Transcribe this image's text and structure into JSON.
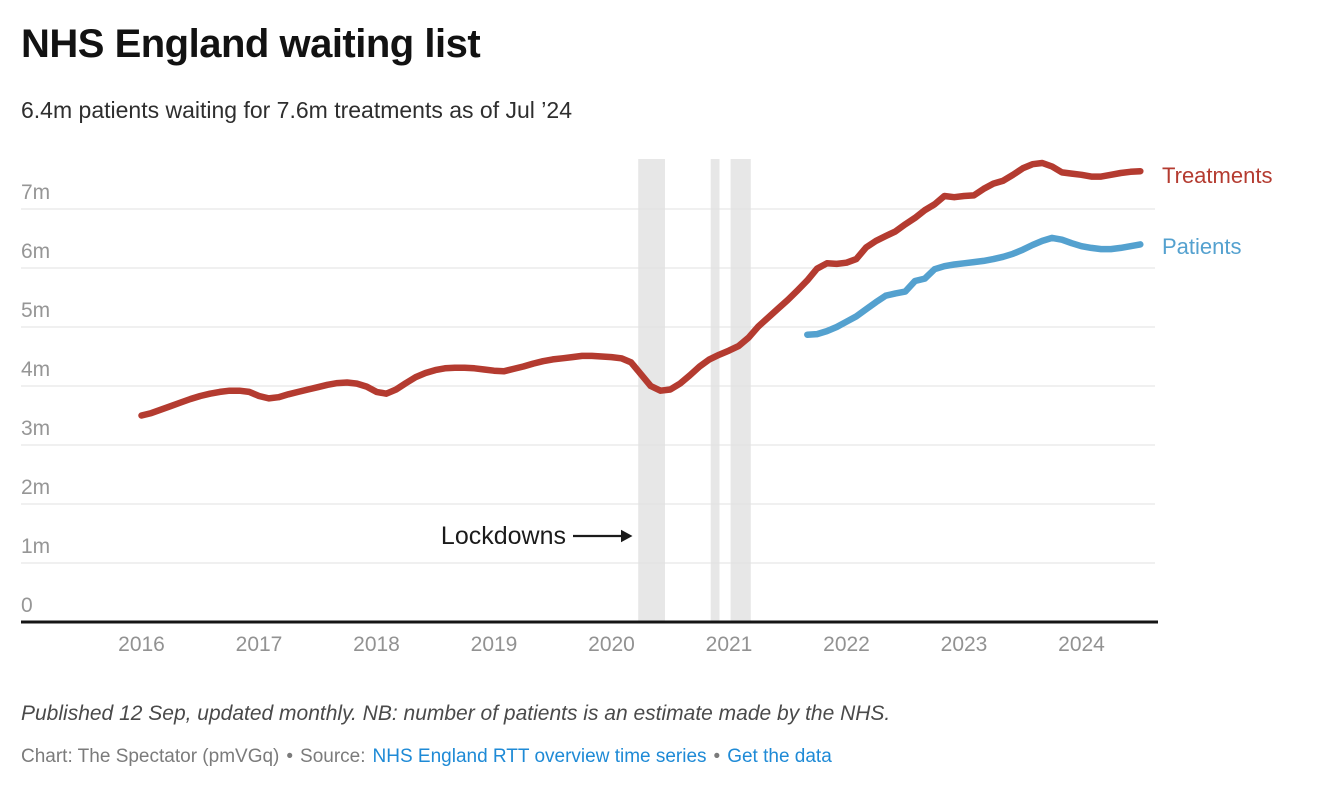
{
  "header": {
    "title": "NHS England waiting list",
    "subtitle": "6.4m patients waiting for 7.6m treatments as of Jul ’24"
  },
  "annotation": {
    "lockdowns_label": "Lockdowns"
  },
  "footer": {
    "note": "Published 12 Sep, updated monthly. NB: number of patients is an estimate made by the NHS.",
    "credit": "Chart: The Spectator (pmVGq)",
    "separator": "•",
    "source_label": "Source:",
    "source_link": "NHS England RTT overview time series",
    "data_link": "Get the data",
    "link_color": "#1e8ad6"
  },
  "chart_data": {
    "type": "line",
    "title": "NHS England waiting list",
    "subtitle": "6.4m patients waiting for 7.6m treatments as of Jul ’24",
    "unit": "millions of people / pathways",
    "x_ticks": [
      2016,
      2017,
      2018,
      2019,
      2020,
      2021,
      2022,
      2023,
      2024
    ],
    "y_ticks": [
      {
        "value": 0,
        "label": "0"
      },
      {
        "value": 1,
        "label": "1m"
      },
      {
        "value": 2,
        "label": "2m"
      },
      {
        "value": 3,
        "label": "3m"
      },
      {
        "value": 4,
        "label": "4m"
      },
      {
        "value": 5,
        "label": "5m"
      },
      {
        "value": 6,
        "label": "6m"
      },
      {
        "value": 7,
        "label": "7m"
      }
    ],
    "ylim": [
      0,
      7.85
    ],
    "grid": true,
    "legend_position": "right-of-line-ends",
    "series": [
      {
        "name": "Treatments",
        "color": "#b43b30",
        "start": "2016-01",
        "interval": "monthly",
        "values": [
          3.5,
          3.54,
          3.6,
          3.66,
          3.72,
          3.78,
          3.83,
          3.87,
          3.9,
          3.92,
          3.92,
          3.9,
          3.83,
          3.79,
          3.81,
          3.86,
          3.9,
          3.94,
          3.98,
          4.02,
          4.05,
          4.06,
          4.04,
          3.99,
          3.9,
          3.87,
          3.94,
          4.05,
          4.15,
          4.22,
          4.27,
          4.3,
          4.31,
          4.31,
          4.3,
          4.28,
          4.26,
          4.25,
          4.29,
          4.33,
          4.38,
          4.42,
          4.45,
          4.47,
          4.49,
          4.51,
          4.51,
          4.5,
          4.49,
          4.47,
          4.4,
          4.2,
          4.0,
          3.92,
          3.94,
          4.04,
          4.18,
          4.33,
          4.45,
          4.53,
          4.6,
          4.68,
          4.82,
          5.01,
          5.16,
          5.31,
          5.46,
          5.62,
          5.79,
          5.99,
          6.08,
          6.07,
          6.09,
          6.15,
          6.35,
          6.46,
          6.54,
          6.62,
          6.74,
          6.85,
          6.98,
          7.08,
          7.22,
          7.2,
          7.22,
          7.23,
          7.34,
          7.43,
          7.48,
          7.58,
          7.69,
          7.76,
          7.78,
          7.72,
          7.62,
          7.6,
          7.58,
          7.55,
          7.55,
          7.58,
          7.61,
          7.63,
          7.64
        ]
      },
      {
        "name": "Patients",
        "color": "#54a1cf",
        "start": "2021-09",
        "interval": "monthly",
        "values": [
          4.87,
          4.88,
          4.93,
          5.0,
          5.09,
          5.18,
          5.3,
          5.42,
          5.53,
          5.57,
          5.6,
          5.78,
          5.82,
          5.98,
          6.03,
          6.06,
          6.08,
          6.1,
          6.12,
          6.15,
          6.19,
          6.24,
          6.31,
          6.39,
          6.46,
          6.51,
          6.48,
          6.42,
          6.37,
          6.34,
          6.32,
          6.32,
          6.34,
          6.37,
          6.4
        ]
      }
    ],
    "lockdown_bands": [
      {
        "from": "2020-03-23",
        "to": "2020-06-15"
      },
      {
        "from": "2020-11-05",
        "to": "2020-12-02"
      },
      {
        "from": "2021-01-06",
        "to": "2021-03-08"
      }
    ]
  }
}
